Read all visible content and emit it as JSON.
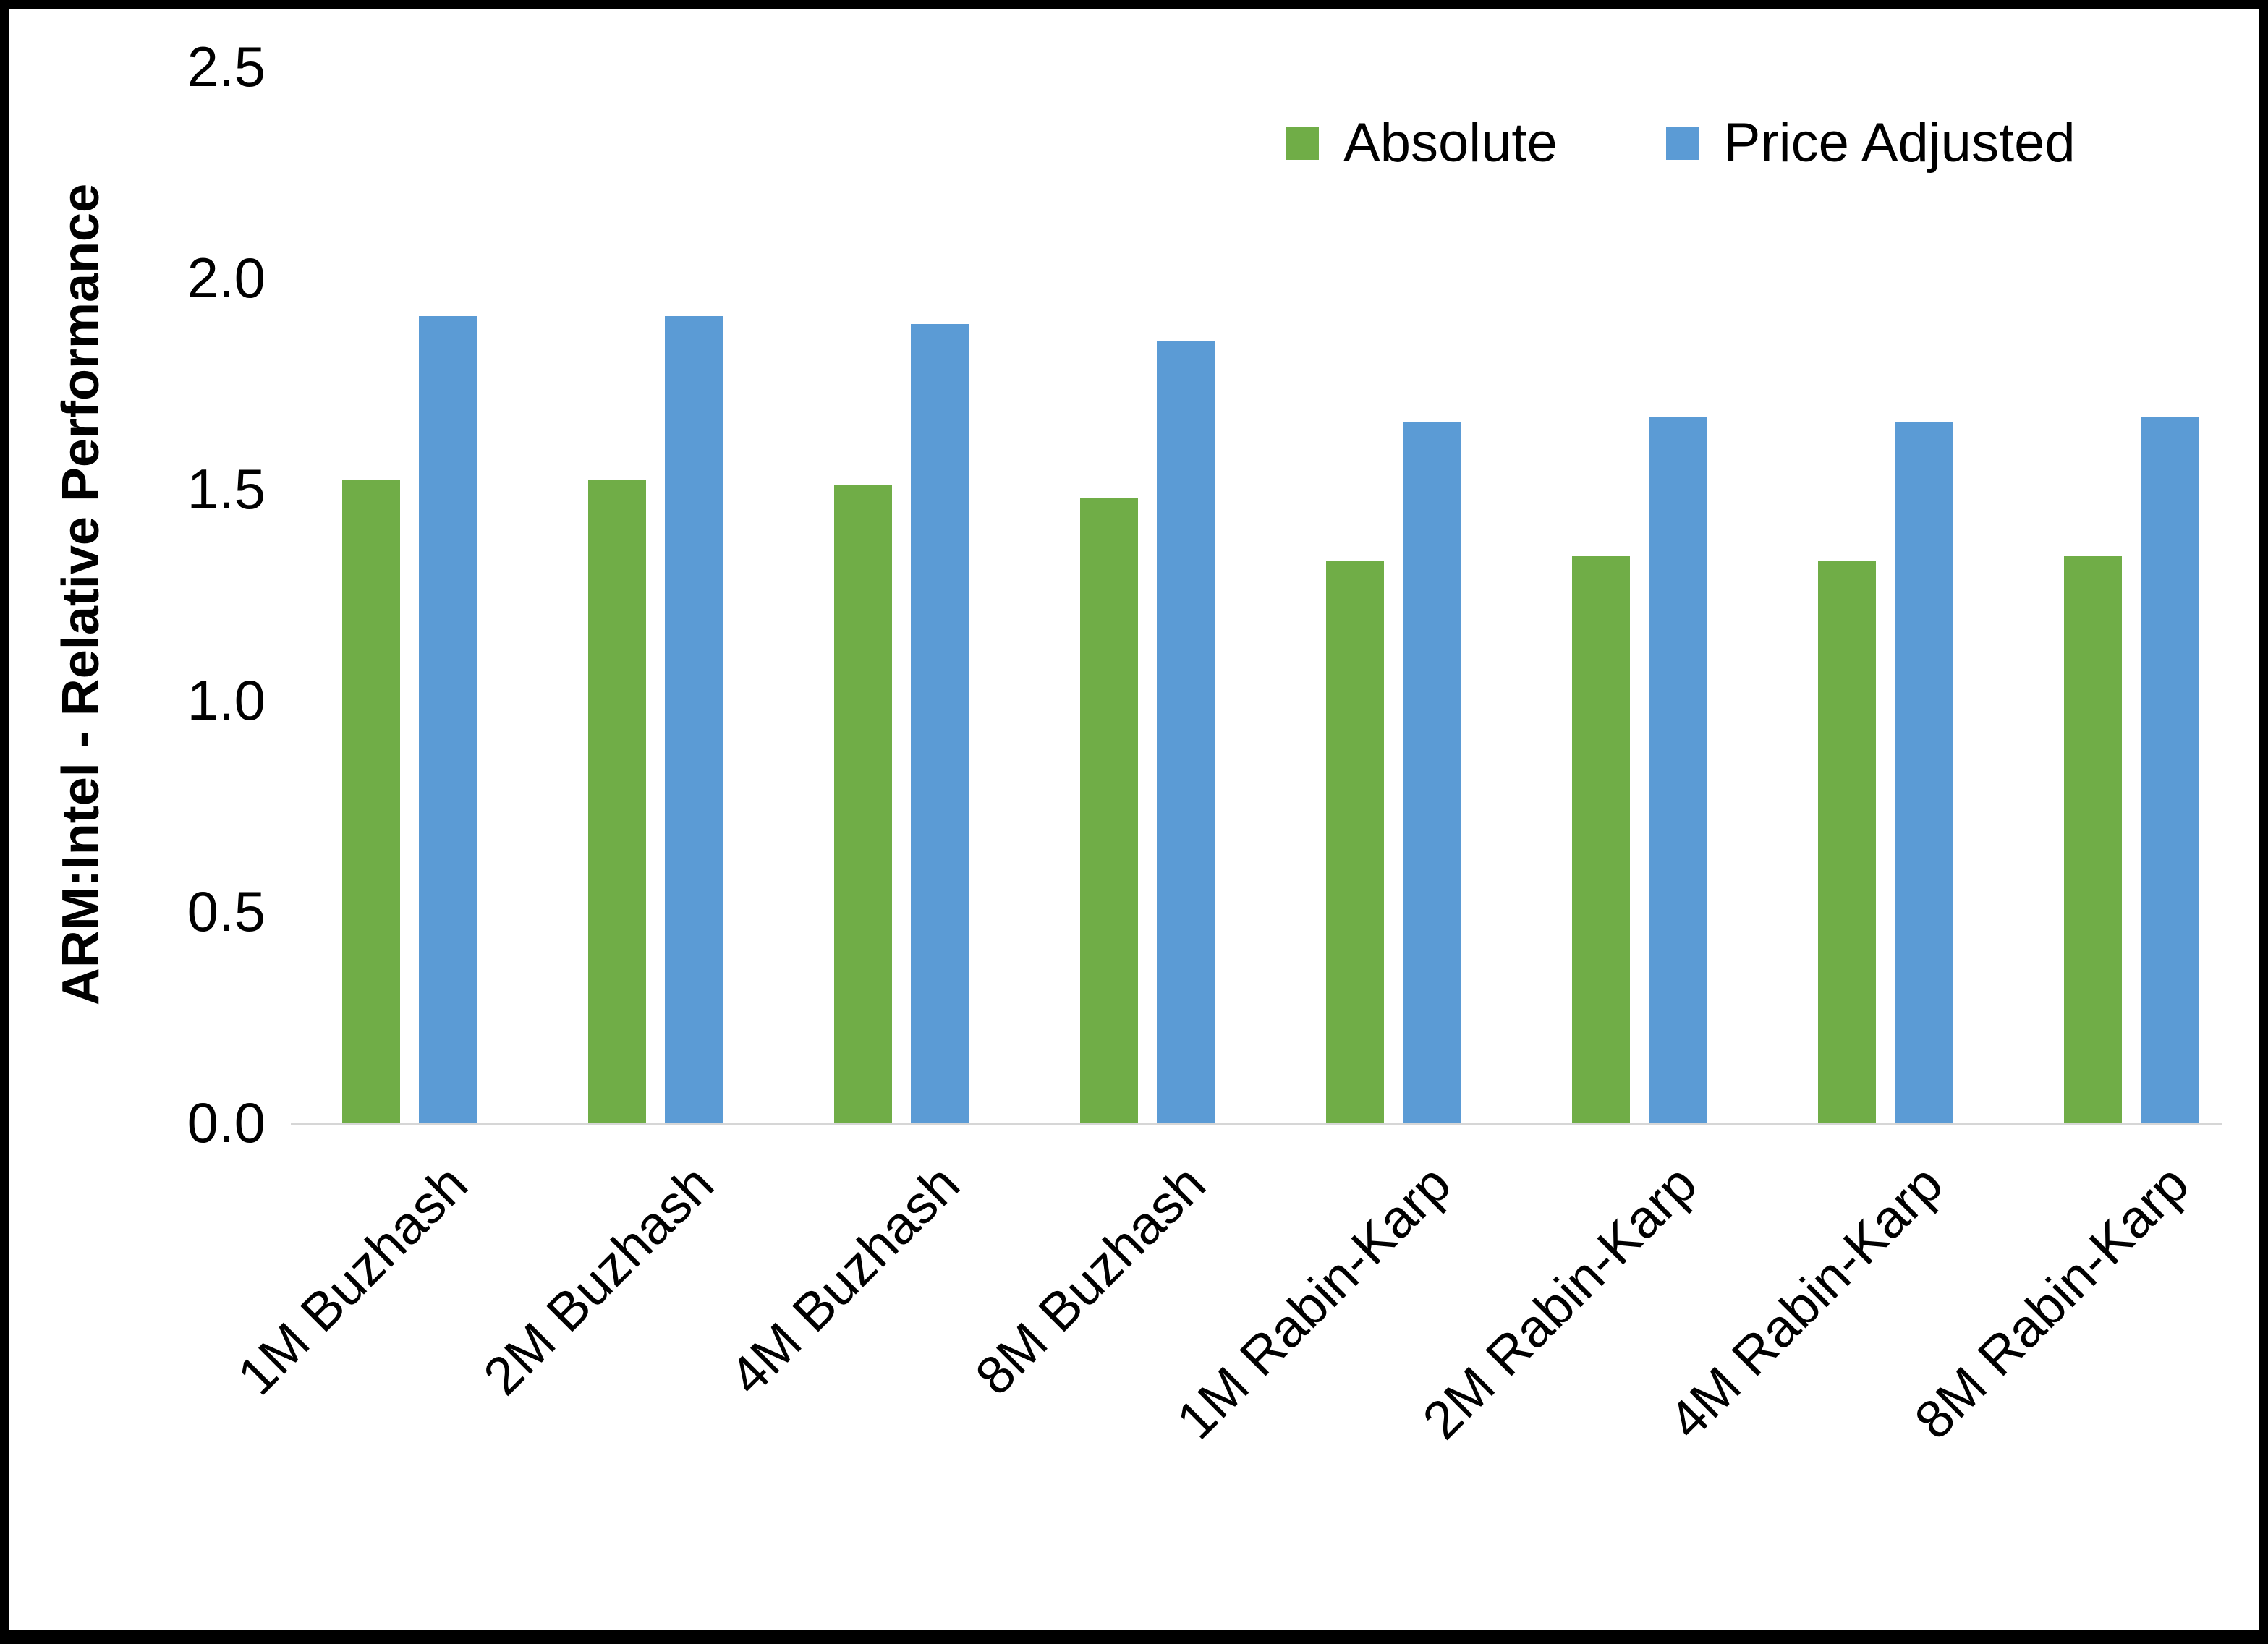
{
  "chart_data": {
    "type": "bar",
    "title": "",
    "xlabel": "",
    "ylabel": "ARM:Intel - Relative Performance",
    "ylim": [
      0,
      2.5
    ],
    "ytick_labels": [
      "0.0",
      "0.5",
      "1.0",
      "1.5",
      "2.0",
      "2.5"
    ],
    "ytick_values": [
      0,
      0.5,
      1.0,
      1.5,
      2.0,
      2.5
    ],
    "grid": false,
    "legend_position": "top-right",
    "categories": [
      "1M Buzhash",
      "2M Buzhash",
      "4M Buzhash",
      "8M Buzhash",
      "1M Rabin-Karp",
      "2M Rabin-Karp",
      "4M Rabin-Karp",
      "8M Rabin-Karp"
    ],
    "series": [
      {
        "name": "Absolute",
        "color": "#70AD47",
        "values": [
          1.52,
          1.52,
          1.51,
          1.48,
          1.33,
          1.34,
          1.33,
          1.34
        ]
      },
      {
        "name": "Price Adjusted",
        "color": "#5B9BD5",
        "values": [
          1.91,
          1.91,
          1.89,
          1.85,
          1.66,
          1.67,
          1.66,
          1.67
        ]
      }
    ]
  },
  "colors": {
    "absolute_series": "#70AD47",
    "price_adjusted_series": "#5B9BD5",
    "axis_line": "#d6d6d6",
    "frame_border": "#000000",
    "background": "#ffffff"
  }
}
